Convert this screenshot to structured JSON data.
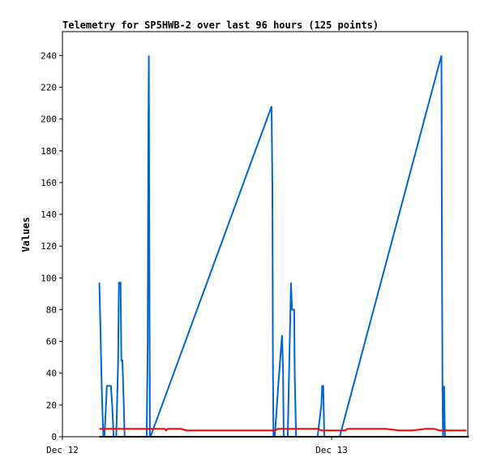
{
  "chart_data": {
    "type": "line",
    "title": "Telemetry for SP5HWB-2 over last 96 hours (125 points)",
    "xlabel": "",
    "ylabel": "Values",
    "ylim": [
      0,
      255
    ],
    "xlim": [
      0,
      1.52
    ],
    "x_unit": "days since Dec 12",
    "x_ticks": [
      {
        "value": 0,
        "label": "Dec 12"
      },
      {
        "value": 1,
        "label": "Dec 13"
      }
    ],
    "y_ticks": [
      0,
      20,
      40,
      60,
      80,
      100,
      120,
      140,
      160,
      180,
      200,
      220,
      240
    ],
    "grid": false,
    "legend": "none",
    "series": [
      {
        "color": "#0066cc",
        "points": [
          [
            0.137,
            97
          ],
          [
            0.141,
            70
          ],
          [
            0.145,
            40
          ],
          [
            0.148,
            20
          ],
          [
            0.152,
            0
          ],
          [
            0.156,
            0
          ],
          [
            0.162,
            20
          ],
          [
            0.165,
            32
          ],
          [
            0.171,
            32
          ],
          [
            0.18,
            32
          ],
          [
            0.185,
            20
          ],
          [
            0.19,
            0
          ],
          [
            0.2,
            0
          ],
          [
            0.207,
            48
          ],
          [
            0.21,
            97
          ],
          [
            0.216,
            97
          ],
          [
            0.219,
            48
          ],
          [
            0.223,
            48
          ],
          [
            0.228,
            20
          ],
          [
            0.231,
            0
          ],
          [
            0.255,
            0
          ],
          [
            0.268,
            0
          ],
          [
            0.276,
            0
          ],
          [
            0.282,
            0
          ],
          [
            0.29,
            0
          ],
          [
            0.307,
            0
          ],
          [
            0.313,
            0
          ],
          [
            0.317,
            60
          ],
          [
            0.319,
            180
          ],
          [
            0.321,
            240
          ],
          [
            0.323,
            120
          ],
          [
            0.325,
            0
          ],
          [
            0.327,
            0
          ],
          [
            0.777,
            208
          ],
          [
            0.78,
            155
          ],
          [
            0.782,
            50
          ],
          [
            0.784,
            0
          ],
          [
            0.789,
            0
          ],
          [
            0.803,
            35
          ],
          [
            0.816,
            64
          ],
          [
            0.82,
            40
          ],
          [
            0.822,
            0
          ],
          [
            0.826,
            0
          ],
          [
            0.837,
            0
          ],
          [
            0.846,
            72
          ],
          [
            0.849,
            97
          ],
          [
            0.853,
            80
          ],
          [
            0.861,
            80
          ],
          [
            0.863,
            40
          ],
          [
            0.868,
            0
          ],
          [
            0.948,
            0
          ],
          [
            0.962,
            20
          ],
          [
            0.965,
            32
          ],
          [
            0.969,
            32
          ],
          [
            0.973,
            0
          ],
          [
            1.03,
            0
          ],
          [
            1.408,
            240
          ],
          [
            1.41,
            120
          ],
          [
            1.412,
            30
          ],
          [
            1.414,
            0
          ],
          [
            1.418,
            32
          ],
          [
            1.421,
            0
          ]
        ]
      },
      {
        "color": "#ff0000",
        "points": [
          [
            0.137,
            5
          ],
          [
            0.2,
            5
          ],
          [
            0.3,
            5
          ],
          [
            0.38,
            5
          ],
          [
            0.385,
            4
          ],
          [
            0.39,
            5
          ],
          [
            0.44,
            5
          ],
          [
            0.46,
            4
          ],
          [
            0.6,
            4
          ],
          [
            0.7,
            4
          ],
          [
            0.79,
            4
          ],
          [
            0.8,
            5
          ],
          [
            0.95,
            5
          ],
          [
            0.96,
            4
          ],
          [
            1.0,
            4
          ],
          [
            1.05,
            4
          ],
          [
            1.06,
            5
          ],
          [
            1.2,
            5
          ],
          [
            1.25,
            4
          ],
          [
            1.3,
            4
          ],
          [
            1.35,
            5
          ],
          [
            1.38,
            5
          ],
          [
            1.4,
            4
          ],
          [
            1.43,
            4
          ],
          [
            1.5,
            4
          ]
        ]
      },
      {
        "color": "#000000",
        "points": [
          [
            0.137,
            0
          ],
          [
            1.51,
            0
          ]
        ]
      }
    ]
  }
}
